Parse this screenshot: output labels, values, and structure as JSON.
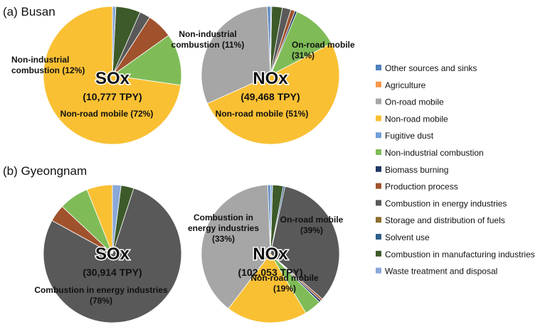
{
  "chart_data": {
    "type": "pie",
    "categories": [
      "Other sources and sinks",
      "Agriculture",
      "On-road mobile",
      "Non-road mobile",
      "Fugitive dust",
      "Non-industrial combustion",
      "Biomass burning",
      "Production process",
      "Combustion in energy industries",
      "Storage and distribution of fuels",
      "Solvent use",
      "Combustion in manufacturing industries",
      "Waste treatment and disposal"
    ],
    "colors": [
      "#4f81bd",
      "#f79646",
      "#a6a6a6",
      "#f9c033",
      "#6f9fd8",
      "#7fbc57",
      "#1f3864",
      "#a0522d",
      "#595959",
      "#8c6d2e",
      "#2f5f8a",
      "#3d5a2a",
      "#8aa8d8"
    ],
    "legend_position": "right",
    "panels": [
      {
        "title": "(a) Busan",
        "pies": [
          {
            "pollutant": "SOx",
            "total": "(10,777 TPY)",
            "values": [
              0,
              0,
              0,
              72,
              0,
              12,
              0,
              6,
              2.5,
              0,
              0,
              5.7,
              0.8
            ],
            "labels": [
              {
                "category": "Non-road mobile",
                "lines": [
                  "Non-road mobile (72%)"
                ]
              },
              {
                "category": "Non-industrial combustion",
                "lines": [
                  "Non-industrial",
                  "combustion (12%)"
                ]
              }
            ]
          },
          {
            "pollutant": "NOx",
            "total": "(49,468 TPY)",
            "values": [
              0.7,
              0,
              31,
              51,
              0,
              11,
              0.5,
              1,
              2,
              0,
              0,
              2.5,
              0.3
            ],
            "labels": [
              {
                "category": "On-road mobile",
                "lines": [
                  "On-road mobile",
                  "(31%)"
                ]
              },
              {
                "category": "Non-road mobile",
                "lines": [
                  "Non-road mobile (51%)"
                ]
              },
              {
                "category": "Non-industrial combustion",
                "lines": [
                  "Non-industrial",
                  "combustion (11%)"
                ]
              }
            ]
          }
        ]
      },
      {
        "title": "(b) Gyeongnam",
        "pies": [
          {
            "pollutant": "SOx",
            "total": "(30,914 TPY)",
            "values": [
              0,
              0,
              0,
              6,
              0,
              7,
              0,
              4,
              78,
              0,
              0,
              3,
              2
            ],
            "labels": [
              {
                "category": "Combustion in energy industries",
                "lines": [
                  "Combustion in energy industries",
                  "(78%)"
                ]
              }
            ]
          },
          {
            "pollutant": "NOx",
            "total": "(102,053 TPY)",
            "values": [
              0.6,
              0,
              39,
              19,
              0,
              4,
              0.5,
              0.5,
              33,
              0,
              0.4,
              2.5,
              0.5
            ],
            "labels": [
              {
                "category": "On-road mobile",
                "lines": [
                  "On-road mobile",
                  "(39%)"
                ]
              },
              {
                "category": "Non-road mobile",
                "lines": [
                  "Non-road mobile",
                  "(19%)"
                ]
              },
              {
                "category": "Combustion in energy industries",
                "lines": [
                  "Combustion in",
                  "energy industries",
                  "(33%)"
                ]
              }
            ]
          }
        ]
      }
    ]
  }
}
